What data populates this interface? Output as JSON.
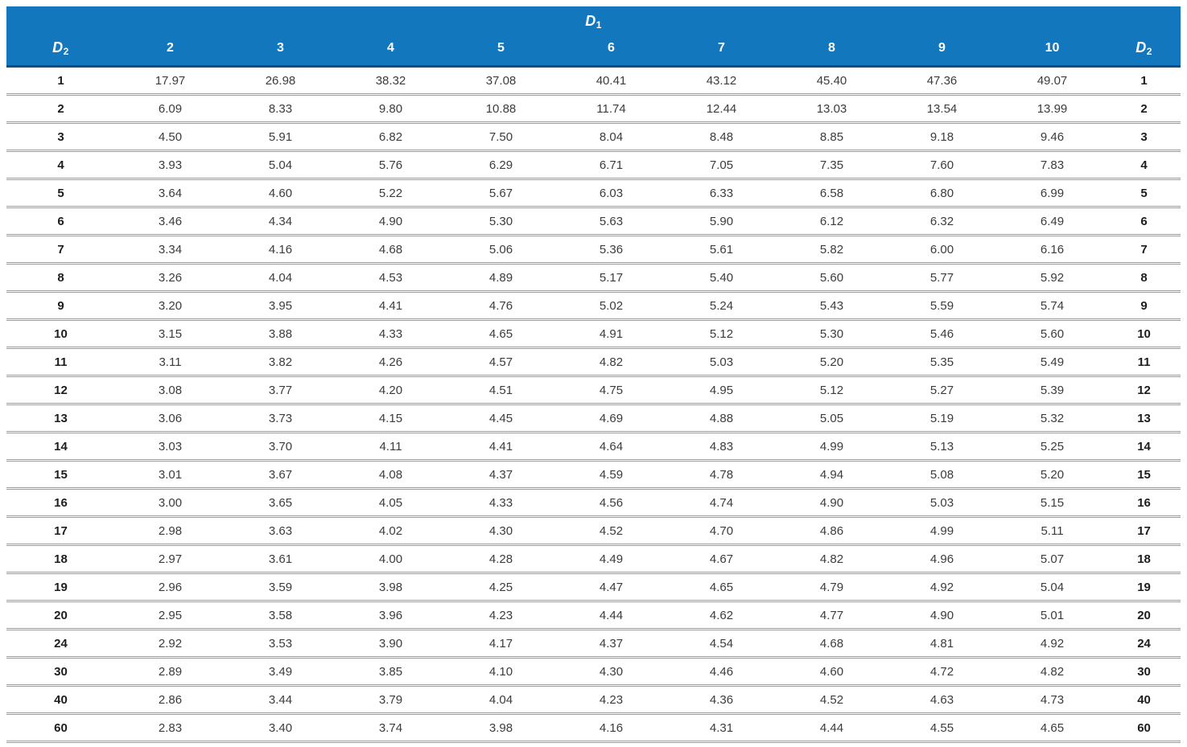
{
  "header": {
    "d1_symbol": "D",
    "d1_subscript": "1",
    "d2_symbol": "D",
    "d2_subscript": "2"
  },
  "colors": {
    "header_background": "#1277bd",
    "header_bottom_edge": "#0d4f85",
    "row_separator": "#9b9b9b",
    "data_text": "#3c3c3c",
    "label_text": "#1d1d1d"
  },
  "chart_data": {
    "type": "table",
    "column_group_label": "D1",
    "row_group_label": "D2",
    "columns": [
      "2",
      "3",
      "4",
      "5",
      "6",
      "7",
      "8",
      "9",
      "10"
    ],
    "rows": [
      {
        "label": "1",
        "values": [
          "17.97",
          "26.98",
          "38.32",
          "37.08",
          "40.41",
          "43.12",
          "45.40",
          "47.36",
          "49.07"
        ]
      },
      {
        "label": "2",
        "values": [
          "6.09",
          "8.33",
          "9.80",
          "10.88",
          "11.74",
          "12.44",
          "13.03",
          "13.54",
          "13.99"
        ]
      },
      {
        "label": "3",
        "values": [
          "4.50",
          "5.91",
          "6.82",
          "7.50",
          "8.04",
          "8.48",
          "8.85",
          "9.18",
          "9.46"
        ]
      },
      {
        "label": "4",
        "values": [
          "3.93",
          "5.04",
          "5.76",
          "6.29",
          "6.71",
          "7.05",
          "7.35",
          "7.60",
          "7.83"
        ]
      },
      {
        "label": "5",
        "values": [
          "3.64",
          "4.60",
          "5.22",
          "5.67",
          "6.03",
          "6.33",
          "6.58",
          "6.80",
          "6.99"
        ]
      },
      {
        "label": "6",
        "values": [
          "3.46",
          "4.34",
          "4.90",
          "5.30",
          "5.63",
          "5.90",
          "6.12",
          "6.32",
          "6.49"
        ]
      },
      {
        "label": "7",
        "values": [
          "3.34",
          "4.16",
          "4.68",
          "5.06",
          "5.36",
          "5.61",
          "5.82",
          "6.00",
          "6.16"
        ]
      },
      {
        "label": "8",
        "values": [
          "3.26",
          "4.04",
          "4.53",
          "4.89",
          "5.17",
          "5.40",
          "5.60",
          "5.77",
          "5.92"
        ]
      },
      {
        "label": "9",
        "values": [
          "3.20",
          "3.95",
          "4.41",
          "4.76",
          "5.02",
          "5.24",
          "5.43",
          "5.59",
          "5.74"
        ]
      },
      {
        "label": "10",
        "values": [
          "3.15",
          "3.88",
          "4.33",
          "4.65",
          "4.91",
          "5.12",
          "5.30",
          "5.46",
          "5.60"
        ]
      },
      {
        "label": "11",
        "values": [
          "3.11",
          "3.82",
          "4.26",
          "4.57",
          "4.82",
          "5.03",
          "5.20",
          "5.35",
          "5.49"
        ]
      },
      {
        "label": "12",
        "values": [
          "3.08",
          "3.77",
          "4.20",
          "4.51",
          "4.75",
          "4.95",
          "5.12",
          "5.27",
          "5.39"
        ]
      },
      {
        "label": "13",
        "values": [
          "3.06",
          "3.73",
          "4.15",
          "4.45",
          "4.69",
          "4.88",
          "5.05",
          "5.19",
          "5.32"
        ]
      },
      {
        "label": "14",
        "values": [
          "3.03",
          "3.70",
          "4.11",
          "4.41",
          "4.64",
          "4.83",
          "4.99",
          "5.13",
          "5.25"
        ]
      },
      {
        "label": "15",
        "values": [
          "3.01",
          "3.67",
          "4.08",
          "4.37",
          "4.59",
          "4.78",
          "4.94",
          "5.08",
          "5.20"
        ]
      },
      {
        "label": "16",
        "values": [
          "3.00",
          "3.65",
          "4.05",
          "4.33",
          "4.56",
          "4.74",
          "4.90",
          "5.03",
          "5.15"
        ]
      },
      {
        "label": "17",
        "values": [
          "2.98",
          "3.63",
          "4.02",
          "4.30",
          "4.52",
          "4.70",
          "4.86",
          "4.99",
          "5.11"
        ]
      },
      {
        "label": "18",
        "values": [
          "2.97",
          "3.61",
          "4.00",
          "4.28",
          "4.49",
          "4.67",
          "4.82",
          "4.96",
          "5.07"
        ]
      },
      {
        "label": "19",
        "values": [
          "2.96",
          "3.59",
          "3.98",
          "4.25",
          "4.47",
          "4.65",
          "4.79",
          "4.92",
          "5.04"
        ]
      },
      {
        "label": "20",
        "values": [
          "2.95",
          "3.58",
          "3.96",
          "4.23",
          "4.44",
          "4.62",
          "4.77",
          "4.90",
          "5.01"
        ]
      },
      {
        "label": "24",
        "values": [
          "2.92",
          "3.53",
          "3.90",
          "4.17",
          "4.37",
          "4.54",
          "4.68",
          "4.81",
          "4.92"
        ]
      },
      {
        "label": "30",
        "values": [
          "2.89",
          "3.49",
          "3.85",
          "4.10",
          "4.30",
          "4.46",
          "4.60",
          "4.72",
          "4.82"
        ]
      },
      {
        "label": "40",
        "values": [
          "2.86",
          "3.44",
          "3.79",
          "4.04",
          "4.23",
          "4.36",
          "4.52",
          "4.63",
          "4.73"
        ]
      },
      {
        "label": "60",
        "values": [
          "2.83",
          "3.40",
          "3.74",
          "3.98",
          "4.16",
          "4.31",
          "4.44",
          "4.55",
          "4.65"
        ]
      }
    ]
  }
}
